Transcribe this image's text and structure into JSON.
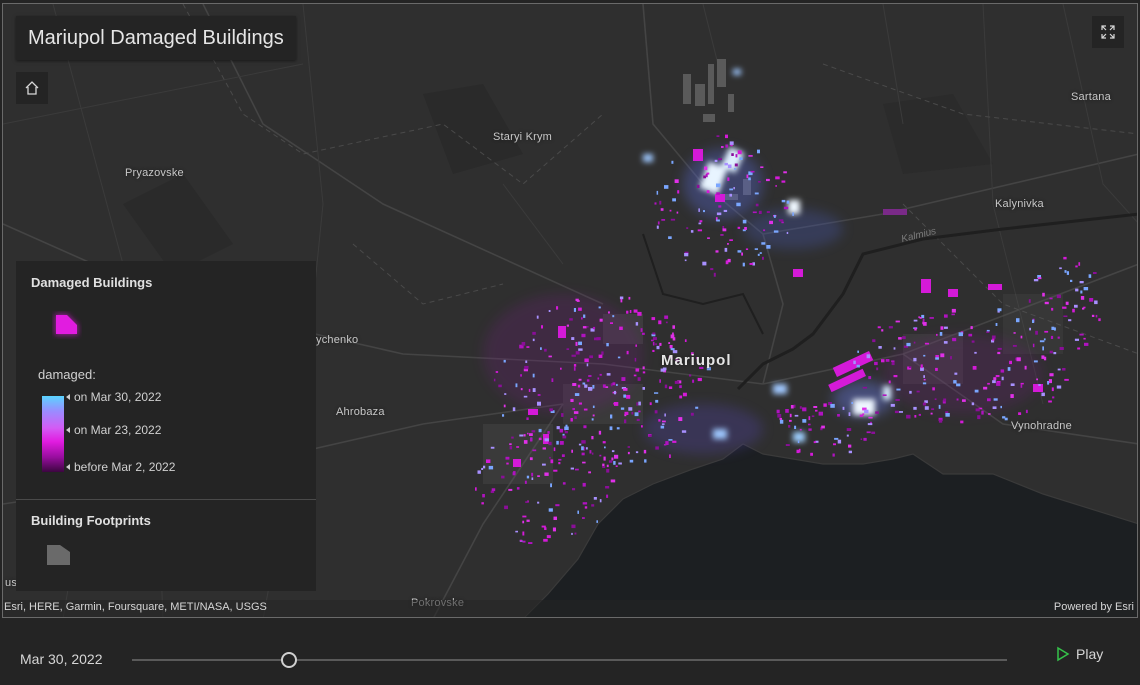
{
  "app": {
    "title": "Mariupol Damaged Buildings"
  },
  "map": {
    "places": [
      {
        "name": "Staryi Krym",
        "key": "staryi"
      },
      {
        "name": "Pryazovske",
        "key": "pryazovske"
      },
      {
        "name": "Sartana",
        "key": "sartana"
      },
      {
        "name": "Kalynivka",
        "key": "kalynivka"
      },
      {
        "name": "Mariupol",
        "key": "mariupol"
      },
      {
        "name": "ychenko",
        "key": "ychenko"
      },
      {
        "name": "Ahrobaza",
        "key": "ahrobaza"
      },
      {
        "name": "Vynohradne",
        "key": "vynohradne"
      },
      {
        "name": "Pokrovske",
        "key": "pokrovske"
      },
      {
        "name": "us",
        "key": "us"
      }
    ],
    "river": "Kalmius",
    "colors": {
      "damage_new": "#5ad4ff",
      "damage_mid": "#e11ce0",
      "damage_old": "#3c0640",
      "footprint": "#6a6a6a",
      "sea": "#1c1f22"
    }
  },
  "controls": {
    "home_icon": "home-icon",
    "fullscreen_icon": "expand-icon"
  },
  "legend": {
    "layer1_title": "Damaged Buildings",
    "field_label": "damaged:",
    "ramp_stops": [
      "on Mar 30, 2022",
      "on Mar 23, 2022",
      "before Mar 2, 2022"
    ],
    "layer2_title": "Building Footprints"
  },
  "attribution": {
    "left": "Esri, HERE, Garmin, Foursquare, METI/NASA, USGS",
    "right": "Powered by Esri"
  },
  "time_slider": {
    "current_label": "Mar 30, 2022",
    "position_fraction": 0.179,
    "play_label": "Play"
  }
}
